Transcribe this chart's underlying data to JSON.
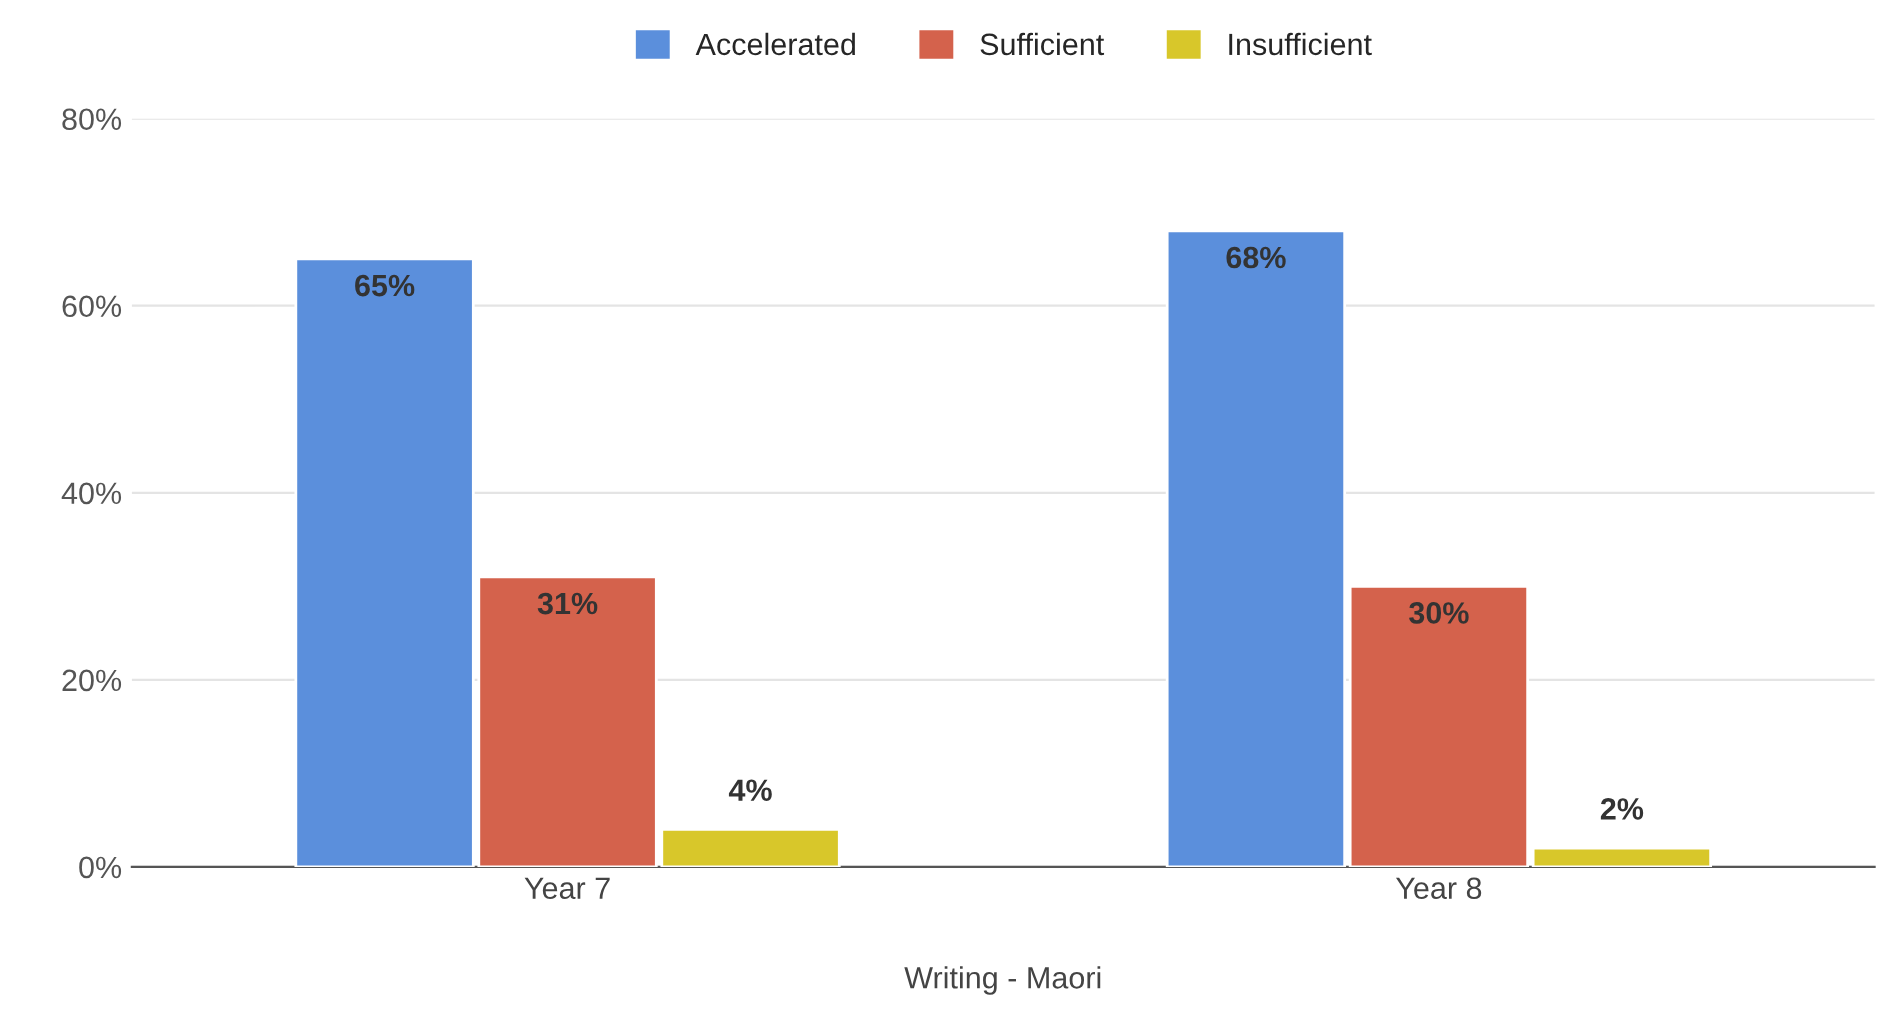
{
  "chart_data": {
    "type": "bar",
    "xlabel": "Writing - Maori",
    "categories": [
      "Year 7",
      "Year 8"
    ],
    "series": [
      {
        "name": "Accelerated",
        "color": "#5b8fdc",
        "values": [
          65,
          68
        ],
        "value_labels": [
          "65%",
          "68%"
        ]
      },
      {
        "name": "Sufficient",
        "color": "#d4624c",
        "values": [
          31,
          30
        ],
        "value_labels": [
          "31%",
          "30%"
        ]
      },
      {
        "name": "Insufficient",
        "color": "#d8c72a",
        "values": [
          4,
          2
        ],
        "value_labels": [
          "4%",
          "2%"
        ]
      }
    ],
    "ylim": [
      0,
      80
    ],
    "yticks": [
      {
        "value": 0,
        "label": "0%"
      },
      {
        "value": 20,
        "label": "20%"
      },
      {
        "value": 40,
        "label": "40%"
      },
      {
        "value": 60,
        "label": "60%"
      },
      {
        "value": 80,
        "label": "80%"
      }
    ],
    "grid": "y",
    "legend": "top"
  }
}
